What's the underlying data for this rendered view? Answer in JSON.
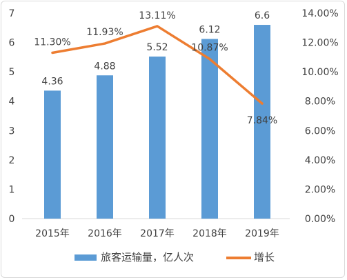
{
  "chart_data": {
    "type": "bar",
    "categories": [
      "2015年",
      "2016年",
      "2017年",
      "2018年",
      "2019年"
    ],
    "series": [
      {
        "name": "旅客运输量，亿人次",
        "type": "bar",
        "axis": "left",
        "values": [
          4.36,
          4.88,
          5.52,
          6.12,
          6.6
        ],
        "labels": [
          "4.36",
          "4.88",
          "5.52",
          "6.12",
          "6.6"
        ],
        "color": "#5b9bd5"
      },
      {
        "name": "增长",
        "type": "line",
        "axis": "right",
        "values": [
          11.3,
          11.93,
          13.11,
          10.87,
          7.84
        ],
        "labels": [
          "11.30%",
          "11.93%",
          "13.11%",
          "10.87%",
          "7.84%"
        ],
        "color": "#ed7d31"
      }
    ],
    "y_left": {
      "min": 0,
      "max": 7,
      "ticks": [
        "0",
        "1",
        "2",
        "3",
        "4",
        "5",
        "6",
        "7"
      ]
    },
    "y_right": {
      "min": 0,
      "max": 14,
      "unit": "%",
      "ticks": [
        "0.00%",
        "2.00%",
        "4.00%",
        "6.00%",
        "8.00%",
        "10.00%",
        "12.00%",
        "14.00%"
      ]
    },
    "title": "",
    "grid": false,
    "legend_position": "bottom"
  }
}
